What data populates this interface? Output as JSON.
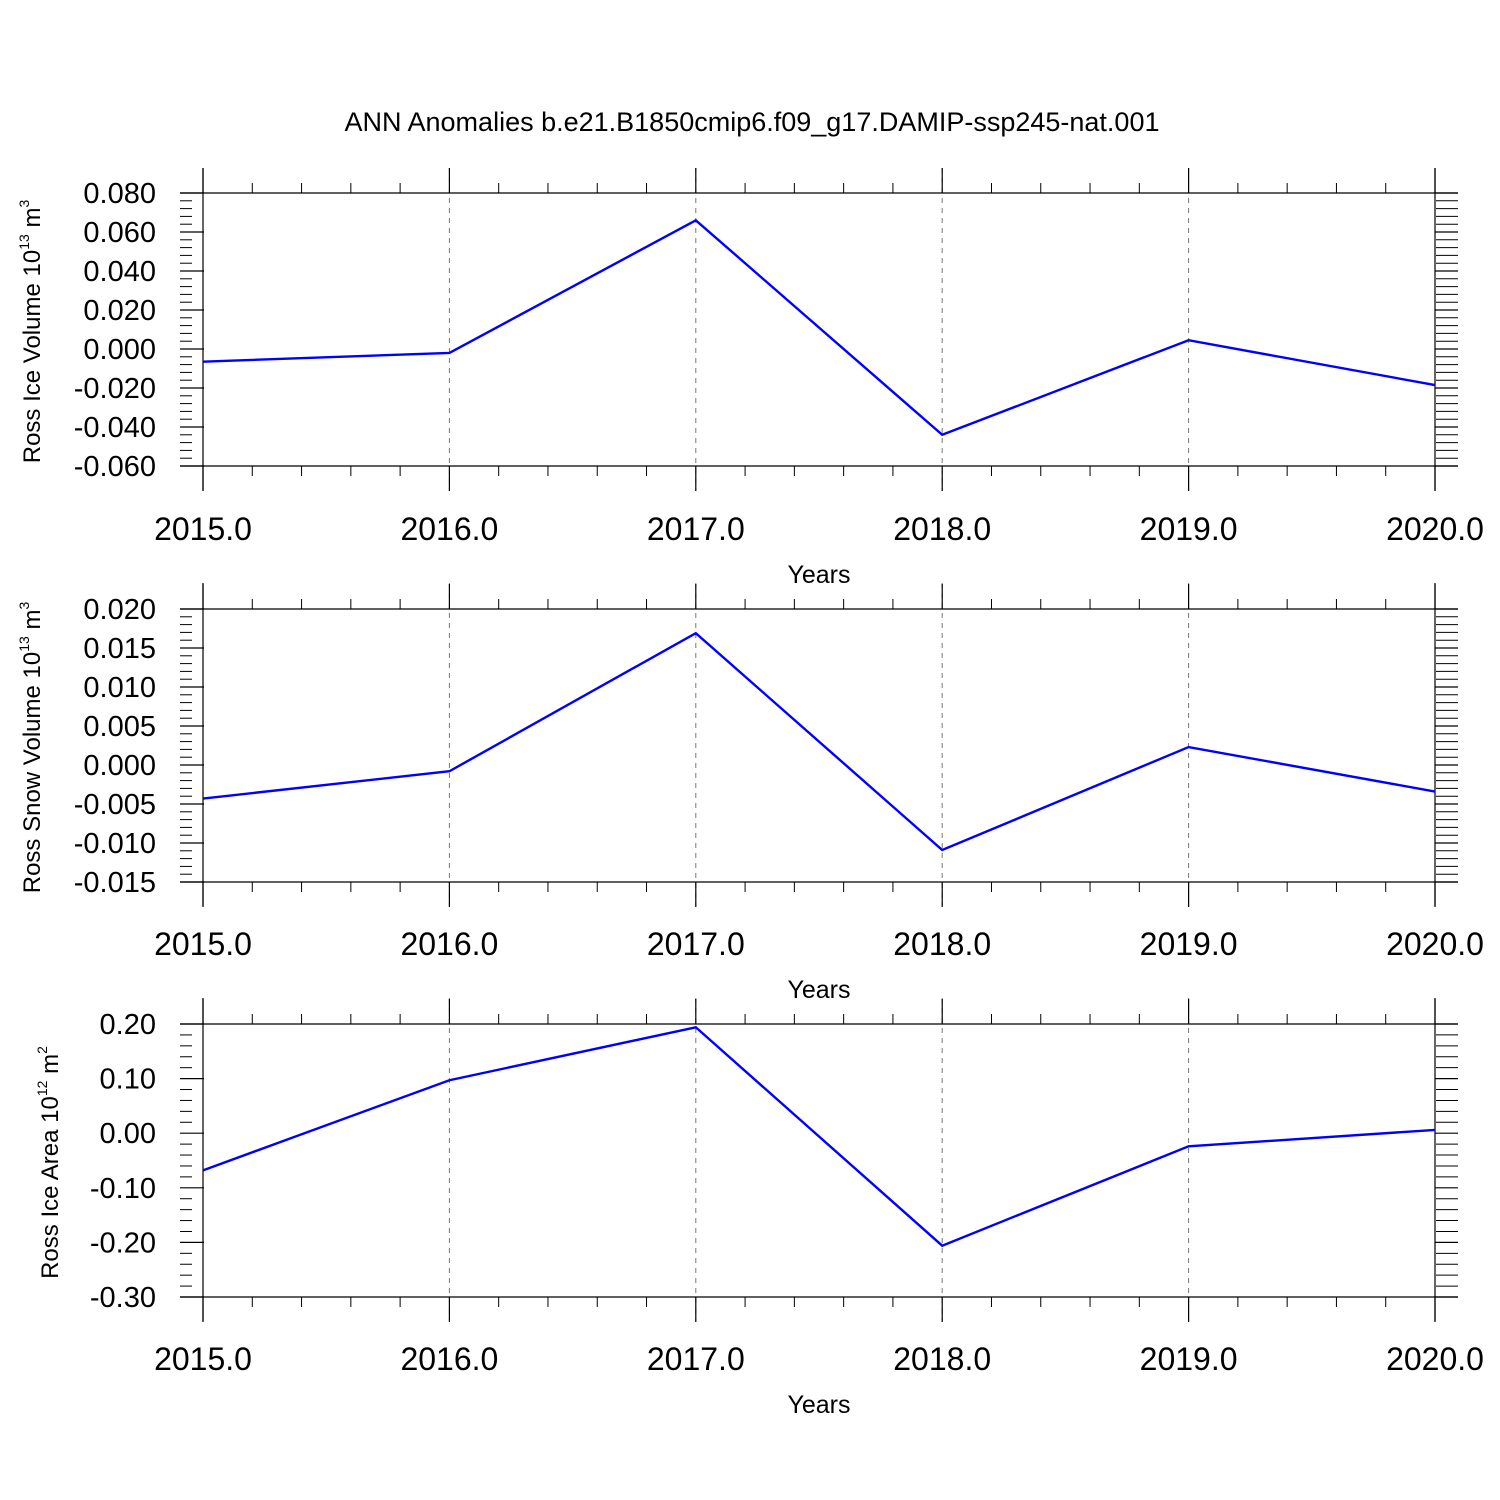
{
  "figure": {
    "title": "ANN Anomalies b.e21.B1850cmip6.f09_g17.DAMIP-ssp245-nat.001"
  },
  "chart_data": [
    {
      "type": "line",
      "xlabel": "Years",
      "ylabel": {
        "prefix": "Ross Ice Volume 10",
        "exp": "13",
        "unit": " m",
        "unit_exp": "3"
      },
      "x": [
        2015,
        2016,
        2017,
        2018,
        2019,
        2020
      ],
      "series": [
        {
          "values": [
            -0.0065,
            -0.002,
            0.066,
            -0.044,
            0.0045,
            -0.0185
          ]
        }
      ],
      "xlim": [
        2015,
        2020
      ],
      "ylim": [
        -0.06,
        0.08
      ],
      "yticks": [
        "0.080",
        "0.060",
        "0.040",
        "0.020",
        "0.000",
        "-0.020",
        "-0.040",
        "-0.060"
      ],
      "ytick_values": [
        0.08,
        0.06,
        0.04,
        0.02,
        0.0,
        -0.02,
        -0.04,
        -0.06
      ],
      "xticks": [
        "2015.0",
        "2016.0",
        "2017.0",
        "2018.0",
        "2019.0",
        "2020.0"
      ],
      "line_color": "#0000ff",
      "grid": "vertical dashed at major x ticks"
    },
    {
      "type": "line",
      "xlabel": "Years",
      "ylabel": {
        "prefix": "Ross Snow Volume 10",
        "exp": "13",
        "unit": " m",
        "unit_exp": "3"
      },
      "x": [
        2015,
        2016,
        2017,
        2018,
        2019,
        2020
      ],
      "series": [
        {
          "values": [
            -0.0043,
            -0.0008,
            0.0169,
            -0.0109,
            0.0023,
            -0.0034
          ]
        }
      ],
      "xlim": [
        2015,
        2020
      ],
      "ylim": [
        -0.015,
        0.02
      ],
      "yticks": [
        "0.020",
        "0.015",
        "0.010",
        "0.005",
        "0.000",
        "-0.005",
        "-0.010",
        "-0.015"
      ],
      "ytick_values": [
        0.02,
        0.015,
        0.01,
        0.005,
        0.0,
        -0.005,
        -0.01,
        -0.015
      ],
      "xticks": [
        "2015.0",
        "2016.0",
        "2017.0",
        "2018.0",
        "2019.0",
        "2020.0"
      ],
      "line_color": "#0000ff",
      "grid": "vertical dashed at major x ticks"
    },
    {
      "type": "line",
      "xlabel": "Years",
      "ylabel": {
        "prefix": "Ross Ice Area 10",
        "exp": "12",
        "unit": " m",
        "unit_exp": "2"
      },
      "x": [
        2015,
        2016,
        2017,
        2018,
        2019,
        2020
      ],
      "series": [
        {
          "values": [
            -0.068,
            0.097,
            0.194,
            -0.206,
            -0.024,
            0.006
          ]
        }
      ],
      "xlim": [
        2015,
        2020
      ],
      "ylim": [
        -0.3,
        0.2
      ],
      "yticks": [
        "0.20",
        "0.10",
        "0.00",
        "-0.10",
        "-0.20",
        "-0.30"
      ],
      "ytick_values": [
        0.2,
        0.1,
        0.0,
        -0.1,
        -0.2,
        -0.3
      ],
      "xticks": [
        "2015.0",
        "2016.0",
        "2017.0",
        "2018.0",
        "2019.0",
        "2020.0"
      ],
      "line_color": "#0000ff",
      "grid": "vertical dashed at major x ticks"
    }
  ]
}
